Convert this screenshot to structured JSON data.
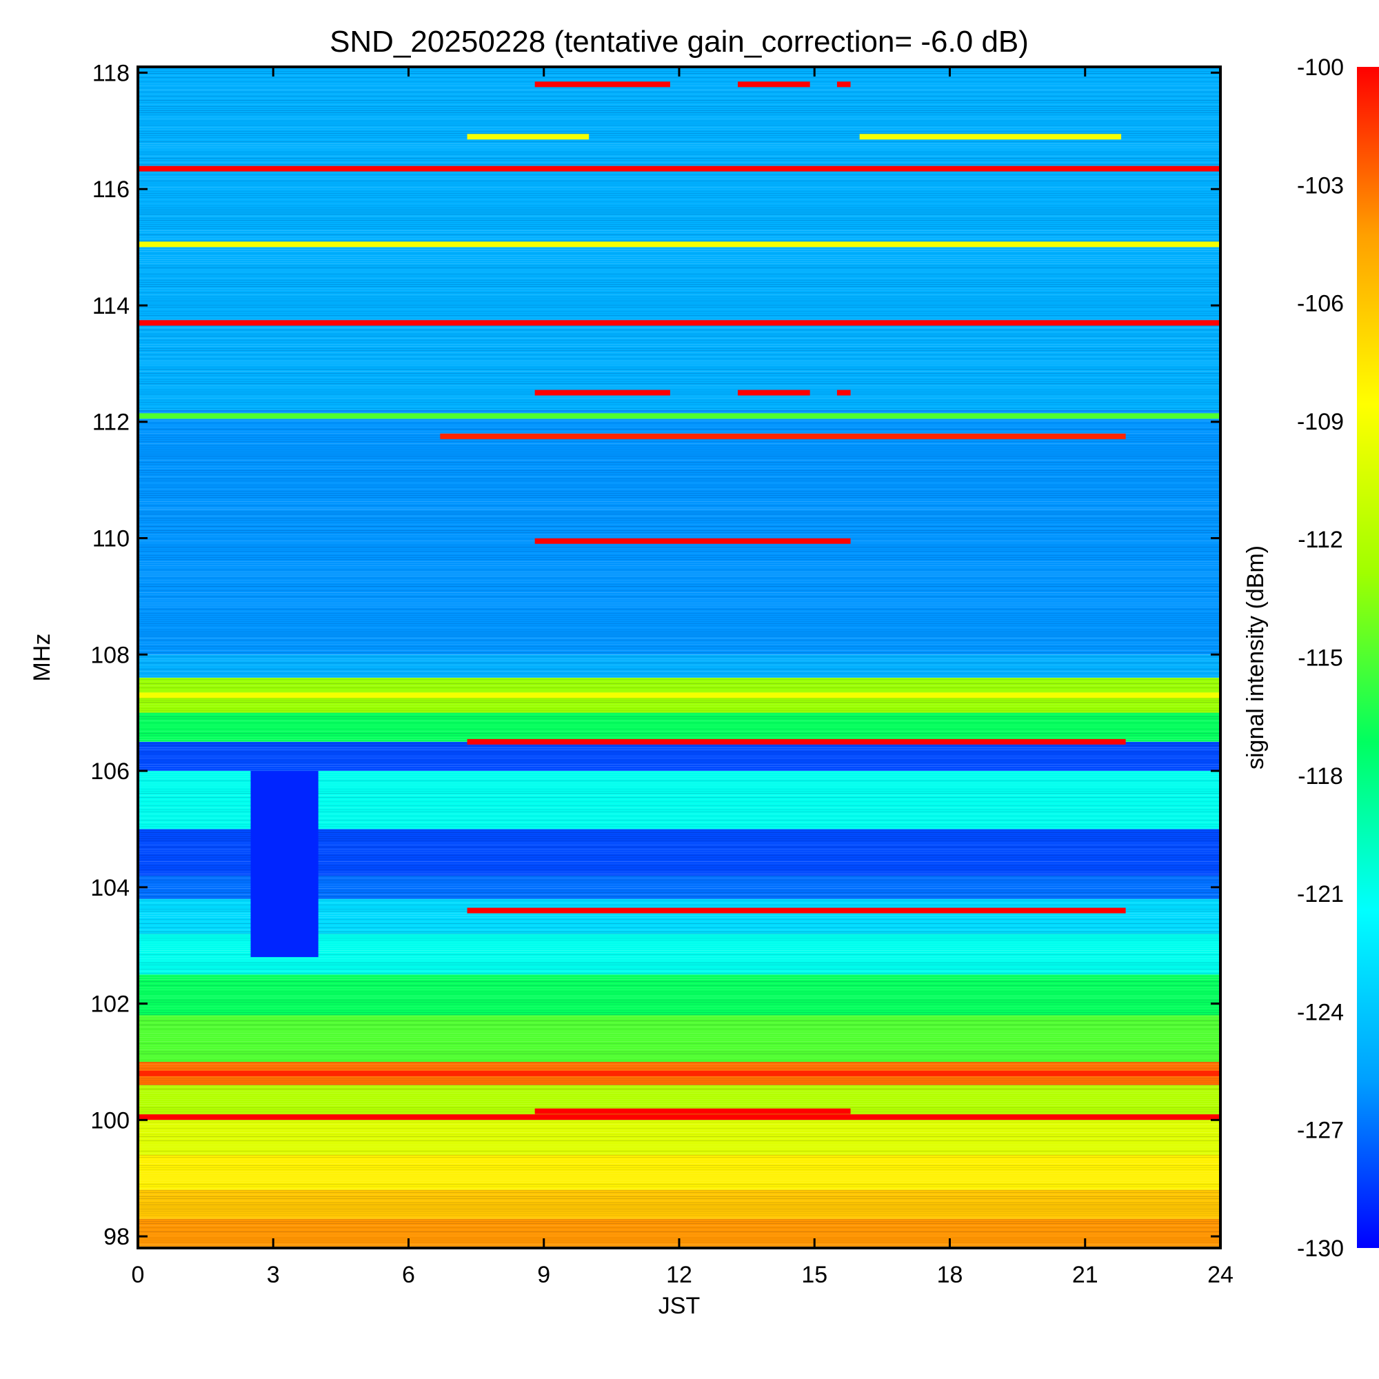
{
  "chart_data": {
    "type": "heatmap",
    "title": "SND_20250228 (tentative gain_correction= -6.0 dB)",
    "xlabel": "JST",
    "ylabel": "MHz",
    "colorbar_label": "signal intensity (dBm)",
    "xlim": [
      0,
      24
    ],
    "ylim": [
      97.8,
      118.1
    ],
    "x_ticks": [
      0,
      3,
      6,
      9,
      12,
      15,
      18,
      21,
      24
    ],
    "y_ticks": [
      98,
      100,
      102,
      104,
      106,
      108,
      110,
      112,
      114,
      116,
      118
    ],
    "colorbar_range": [
      -130,
      -100
    ],
    "colorbar_ticks": [
      -100,
      -103,
      -106,
      -109,
      -112,
      -115,
      -118,
      -121,
      -124,
      -127,
      -130
    ],
    "colormap": [
      "#0000ff",
      "#00a0ff",
      "#00ffff",
      "#00ff60",
      "#a0ff00",
      "#ffff00",
      "#ffa000",
      "#ff0000"
    ],
    "background_bands": [
      {
        "freq": [
          97.8,
          98.3
        ],
        "dbm": -104
      },
      {
        "freq": [
          98.3,
          98.8
        ],
        "dbm": -106
      },
      {
        "freq": [
          98.8,
          99.4
        ],
        "dbm": -108
      },
      {
        "freq": [
          99.4,
          100.0
        ],
        "dbm": -110
      },
      {
        "freq": [
          100.0,
          100.6
        ],
        "dbm": -112
      },
      {
        "freq": [
          100.6,
          101.0
        ],
        "dbm": -103
      },
      {
        "freq": [
          101.0,
          101.8
        ],
        "dbm": -115
      },
      {
        "freq": [
          101.8,
          102.5
        ],
        "dbm": -117
      },
      {
        "freq": [
          102.5,
          103.2
        ],
        "dbm": -121
      },
      {
        "freq": [
          103.2,
          103.8
        ],
        "dbm": -123
      },
      {
        "freq": [
          103.8,
          104.2
        ],
        "dbm": -127
      },
      {
        "freq": [
          104.2,
          105.0
        ],
        "dbm": -128
      },
      {
        "freq": [
          105.0,
          106.0
        ],
        "dbm": -121
      },
      {
        "freq": [
          106.0,
          106.5
        ],
        "dbm": -128
      },
      {
        "freq": [
          106.5,
          107.0
        ],
        "dbm": -117
      },
      {
        "freq": [
          107.0,
          107.6
        ],
        "dbm": -113
      },
      {
        "freq": [
          107.6,
          108.0
        ],
        "dbm": -125
      },
      {
        "freq": [
          108.0,
          110.5
        ],
        "dbm": -126
      },
      {
        "freq": [
          110.5,
          112.2
        ],
        "dbm": -126
      },
      {
        "freq": [
          112.2,
          118.1
        ],
        "dbm": -125
      }
    ],
    "features": [
      {
        "time": [
          0,
          24
        ],
        "freq": 116.35,
        "dbm": -100
      },
      {
        "time": [
          0,
          24
        ],
        "freq": 115.05,
        "dbm": -109
      },
      {
        "time": [
          0,
          24
        ],
        "freq": 113.7,
        "dbm": -100
      },
      {
        "time": [
          0,
          24
        ],
        "freq": 112.1,
        "dbm": -115
      },
      {
        "time": [
          0,
          24
        ],
        "freq": 107.3,
        "dbm": -109
      },
      {
        "time": [
          0,
          24
        ],
        "freq": 100.05,
        "dbm": -100
      },
      {
        "time": [
          0,
          24
        ],
        "freq": 100.8,
        "dbm": -101
      },
      {
        "time": [
          8.8,
          11.8
        ],
        "freq": 117.8,
        "dbm": -100
      },
      {
        "time": [
          13.3,
          14.9
        ],
        "freq": 117.8,
        "dbm": -100
      },
      {
        "time": [
          15.5,
          15.8
        ],
        "freq": 117.8,
        "dbm": -100
      },
      {
        "time": [
          8.8,
          11.8
        ],
        "freq": 112.5,
        "dbm": -100
      },
      {
        "time": [
          13.3,
          14.9
        ],
        "freq": 112.5,
        "dbm": -100
      },
      {
        "time": [
          15.5,
          15.8
        ],
        "freq": 112.5,
        "dbm": -100
      },
      {
        "time": [
          6.7,
          21.9
        ],
        "freq": 111.75,
        "dbm": -101
      },
      {
        "time": [
          8.8,
          15.8
        ],
        "freq": 109.95,
        "dbm": -100
      },
      {
        "time": [
          7.3,
          21.9
        ],
        "freq": 106.5,
        "dbm": -100
      },
      {
        "time": [
          7.3,
          21.9
        ],
        "freq": 103.6,
        "dbm": -100
      },
      {
        "time": [
          8.8,
          15.8
        ],
        "freq": 100.15,
        "dbm": -100
      },
      {
        "time": [
          7.3,
          10.0
        ],
        "freq": 116.9,
        "dbm": -109
      },
      {
        "time": [
          16.0,
          21.8
        ],
        "freq": 116.9,
        "dbm": -109
      },
      {
        "time": [
          2.5,
          4.0
        ],
        "freq": [
          102.8,
          106.0
        ],
        "dbm": -129
      }
    ]
  }
}
